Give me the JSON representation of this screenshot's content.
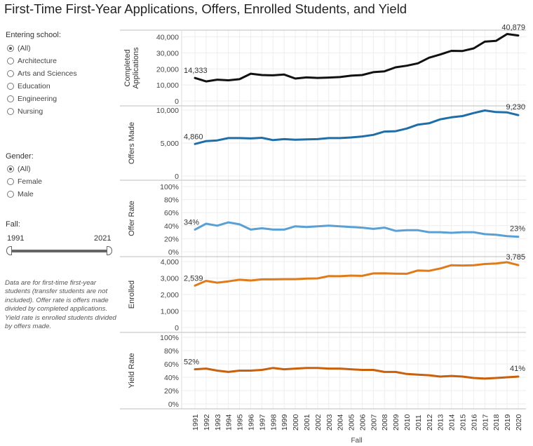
{
  "title": "First-Time First-Year Applications, Offers, Enrolled Students, and Yield",
  "filters": {
    "school": {
      "label": "Entering school:",
      "options": [
        "(All)",
        "Architecture",
        "Arts and Sciences",
        "Education",
        "Engineering",
        "Nursing"
      ],
      "selected": "(All)"
    },
    "gender": {
      "label": "Gender:",
      "options": [
        "(All)",
        "Female",
        "Male"
      ],
      "selected": "(All)"
    },
    "fall": {
      "label": "Fall:",
      "min_label": "1991",
      "max_label": "2021"
    }
  },
  "note": "Data are for first-time first-year students (transfer students are not included). Offer rate is offers made divided by completed applications. Yield rate is enrolled students divided by offers made.",
  "colors": {
    "applications": "#111111",
    "offers": "#1f6ea8",
    "offer_rate": "#5aa0d4",
    "enrolled": "#e07b1a",
    "yield": "#c8600c"
  },
  "chart_data": [
    {
      "type": "line",
      "name": "applications",
      "ylabel": [
        "Completed",
        "Applications"
      ],
      "ylim": [
        0,
        42000
      ],
      "yticks": [
        0,
        10000,
        20000,
        30000,
        40000
      ],
      "tick_labels": [
        "0",
        "10,000",
        "20,000",
        "30,000",
        "40,000"
      ],
      "values": [
        14333,
        12200,
        13300,
        12900,
        13600,
        17000,
        16200,
        16000,
        16500,
        14000,
        14700,
        14400,
        14600,
        14900,
        15800,
        16200,
        18000,
        18500,
        21000,
        22000,
        23500,
        27000,
        29000,
        31300,
        31200,
        32800,
        37000,
        37500,
        41800,
        40879
      ],
      "first_label": "14,333",
      "last_label": "40,879"
    },
    {
      "type": "line",
      "name": "offers",
      "ylabel": [
        "Offers Made"
      ],
      "ylim": [
        0,
        10000
      ],
      "yticks": [
        0,
        5000,
        10000
      ],
      "tick_labels": [
        "0",
        "5,000",
        "10,000"
      ],
      "values": [
        4860,
        5300,
        5400,
        5750,
        5750,
        5700,
        5800,
        5450,
        5600,
        5500,
        5550,
        5600,
        5750,
        5750,
        5850,
        6000,
        6250,
        6750,
        6800,
        7200,
        7800,
        8000,
        8600,
        8900,
        9100,
        9550,
        9950,
        9700,
        9650,
        9230
      ],
      "first_label": "4,860",
      "last_label": "9,230"
    },
    {
      "type": "line",
      "name": "offer_rate",
      "ylabel": [
        "Offer Rate"
      ],
      "ylim": [
        0,
        100
      ],
      "yticks": [
        0,
        20,
        40,
        60,
        80,
        100
      ],
      "tick_labels": [
        "0%",
        "20%",
        "40%",
        "60%",
        "80%",
        "100%"
      ],
      "values": [
        34,
        43,
        40,
        45,
        42,
        34,
        36,
        34,
        34,
        39,
        38,
        39,
        40,
        39,
        38,
        37,
        35,
        37,
        32,
        33,
        33,
        30,
        30,
        29,
        30,
        30,
        27,
        26,
        24,
        23
      ],
      "first_label": "34%",
      "last_label": "23%"
    },
    {
      "type": "line",
      "name": "enrolled",
      "ylabel": [
        "Enrolled"
      ],
      "ylim": [
        0,
        4000
      ],
      "yticks": [
        0,
        1000,
        2000,
        3000,
        4000
      ],
      "tick_labels": [
        "0",
        "1,000",
        "2,000",
        "3,000",
        "4,000"
      ],
      "values": [
        2539,
        2830,
        2720,
        2800,
        2900,
        2850,
        2920,
        2920,
        2930,
        2930,
        2970,
        2980,
        3120,
        3110,
        3150,
        3130,
        3280,
        3290,
        3270,
        3260,
        3460,
        3440,
        3580,
        3780,
        3760,
        3780,
        3850,
        3880,
        3960,
        3785
      ],
      "first_label": "2,539",
      "last_label": "3,785"
    },
    {
      "type": "line",
      "name": "yield",
      "ylabel": [
        "Yield Rate"
      ],
      "ylim": [
        0,
        100
      ],
      "yticks": [
        0,
        20,
        40,
        60,
        80,
        100
      ],
      "tick_labels": [
        "0%",
        "20%",
        "40%",
        "60%",
        "80%",
        "100%"
      ],
      "values": [
        52,
        53,
        50,
        48,
        50,
        50,
        51,
        54,
        52,
        53,
        54,
        54,
        53,
        53,
        52,
        51,
        51,
        48,
        48,
        45,
        44,
        43,
        41,
        42,
        41,
        39,
        38,
        39,
        40,
        41
      ],
      "first_label": "52%",
      "last_label": "41%"
    }
  ],
  "x_axis": {
    "label": "Fall",
    "categories": [
      "1991",
      "1992",
      "1993",
      "1994",
      "1995",
      "1996",
      "1997",
      "1998",
      "1999",
      "2000",
      "2001",
      "2002",
      "2003",
      "2004",
      "2005",
      "2006",
      "2007",
      "2008",
      "2009",
      "2010",
      "2011",
      "2012",
      "2013",
      "2014",
      "2015",
      "2016",
      "2017",
      "2018",
      "2019",
      "2020"
    ]
  }
}
